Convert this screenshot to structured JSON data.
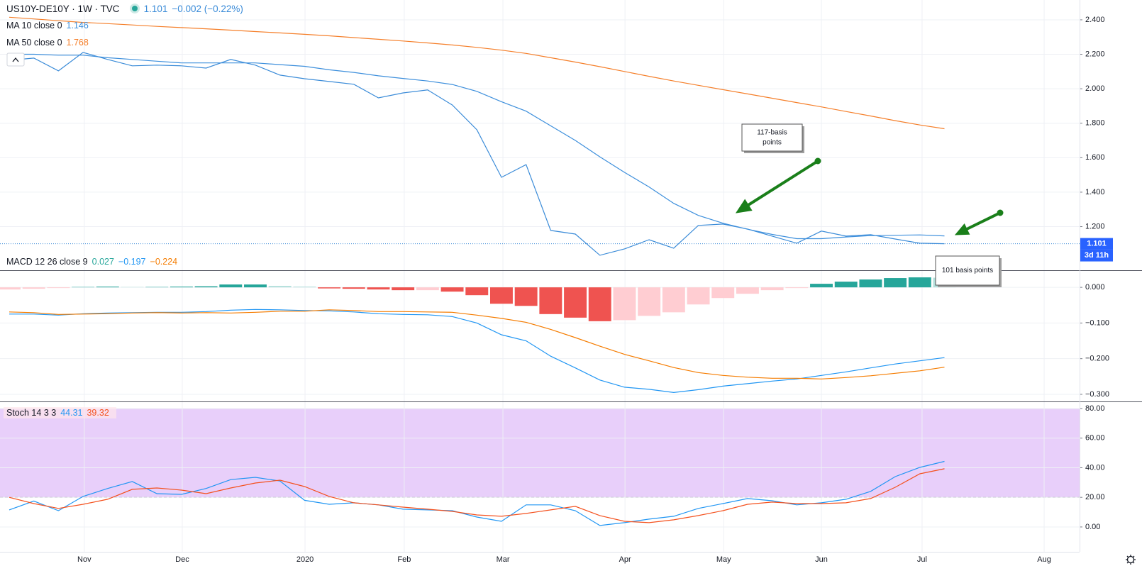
{
  "chart_data": [
    {
      "type": "line",
      "title": "US10Y-DE10Y · 1W · TVC",
      "change_label": "−0.002 (−0.22%)",
      "countdown": "3d 11h",
      "ylim": [
        0.947,
        2.515
      ],
      "yticks": [
        {
          "value": 2.4,
          "label": "2.400"
        },
        {
          "value": 2.2,
          "label": "2.200"
        },
        {
          "value": 2.0,
          "label": "2.000"
        },
        {
          "value": 1.8,
          "label": "1.800"
        },
        {
          "value": 1.6,
          "label": "1.600"
        },
        {
          "value": 1.4,
          "label": "1.400"
        },
        {
          "value": 1.2,
          "label": "1.200"
        }
      ],
      "grid": true,
      "series": [
        {
          "color": "#3a8bd8",
          "values": [
            2.165,
            2.178,
            2.104,
            2.211,
            2.17,
            2.133,
            2.137,
            2.133,
            2.12,
            2.17,
            2.137,
            2.079,
            2.058,
            2.042,
            2.026,
            1.947,
            1.976,
            1.993,
            1.906,
            1.762,
            1.486,
            1.56,
            1.178,
            1.157,
            1.034,
            1.071,
            1.124,
            1.075,
            1.207,
            1.215,
            1.186,
            1.145,
            1.104,
            1.174,
            1.145,
            1.153,
            1.128,
            1.104,
            1.101
          ]
        },
        {
          "name": "MA 10 close 0",
          "color": "#3d8fdc",
          "values": [
            2.2,
            2.2,
            2.195,
            2.195,
            2.18,
            2.17,
            2.16,
            2.15,
            2.15,
            2.15,
            2.15,
            2.14,
            2.13,
            2.11,
            2.095,
            2.075,
            2.06,
            2.045,
            2.025,
            1.985,
            1.925,
            1.87,
            1.785,
            1.7,
            1.605,
            1.515,
            1.43,
            1.335,
            1.265,
            1.22,
            1.185,
            1.155,
            1.13,
            1.13,
            1.14,
            1.148,
            1.15,
            1.152,
            1.146
          ]
        },
        {
          "name": "MA 50 close 0",
          "color": "#f57f2a",
          "values": [
            2.415,
            2.405,
            2.395,
            2.385,
            2.378,
            2.37,
            2.362,
            2.355,
            2.348,
            2.34,
            2.332,
            2.324,
            2.316,
            2.307,
            2.297,
            2.287,
            2.277,
            2.266,
            2.254,
            2.24,
            2.224,
            2.205,
            2.18,
            2.155,
            2.128,
            2.1,
            2.072,
            2.045,
            2.02,
            1.995,
            1.97,
            1.945,
            1.92,
            1.895,
            1.868,
            1.842,
            1.815,
            1.79,
            1.768
          ]
        }
      ],
      "annotations": [
        {
          "lines": [
            "117-basis",
            "points"
          ]
        },
        {
          "lines": [
            "101 basis points"
          ]
        }
      ]
    },
    {
      "type": "macd",
      "title": "MACD 12 26 close 9",
      "ylim": [
        -0.32,
        0.046
      ],
      "yticks": [
        {
          "value": 0,
          "label": "0.000"
        },
        {
          "value": -0.1,
          "label": "−0.100"
        },
        {
          "value": -0.2,
          "label": "−0.200"
        },
        {
          "value": -0.3,
          "label": "−0.300"
        }
      ],
      "grid": true,
      "histogram": {
        "values": [
          -0.006,
          -0.004,
          -0.002,
          0.001,
          0.002,
          0.001,
          0.001,
          0.002,
          0.003,
          0.008,
          0.008,
          0.004,
          0.002,
          -0.003,
          -0.004,
          -0.006,
          -0.008,
          -0.008,
          -0.012,
          -0.022,
          -0.046,
          -0.052,
          -0.075,
          -0.085,
          -0.095,
          -0.092,
          -0.08,
          -0.07,
          -0.048,
          -0.03,
          -0.018,
          -0.008,
          -0.002,
          0.01,
          0.016,
          0.022,
          0.026,
          0.028,
          0.027
        ],
        "colors": {
          "rise_above": "#26a69a",
          "fall_above": "#b2dfdb",
          "rise_below": "#ffcdd2",
          "fall_below": "#ef5350"
        }
      },
      "series": [
        {
          "color": "#2196f3",
          "last_label": "−0.197",
          "values": [
            -0.075,
            -0.075,
            -0.078,
            -0.074,
            -0.072,
            -0.071,
            -0.07,
            -0.07,
            -0.068,
            -0.064,
            -0.062,
            -0.063,
            -0.065,
            -0.066,
            -0.069,
            -0.074,
            -0.076,
            -0.077,
            -0.082,
            -0.1,
            -0.133,
            -0.15,
            -0.193,
            -0.226,
            -0.26,
            -0.28,
            -0.286,
            -0.295,
            -0.287,
            -0.277,
            -0.27,
            -0.263,
            -0.257,
            -0.247,
            -0.237,
            -0.226,
            -0.215,
            -0.206,
            -0.197
          ]
        },
        {
          "color": "#f57c00",
          "last_label": "−0.224",
          "values": [
            -0.069,
            -0.071,
            -0.076,
            -0.075,
            -0.074,
            -0.072,
            -0.071,
            -0.072,
            -0.071,
            -0.072,
            -0.07,
            -0.067,
            -0.067,
            -0.063,
            -0.065,
            -0.068,
            -0.068,
            -0.069,
            -0.07,
            -0.078,
            -0.087,
            -0.098,
            -0.118,
            -0.141,
            -0.165,
            -0.188,
            -0.206,
            -0.225,
            -0.239,
            -0.247,
            -0.252,
            -0.255,
            -0.255,
            -0.257,
            -0.253,
            -0.248,
            -0.241,
            -0.234,
            -0.224
          ]
        }
      ]
    },
    {
      "type": "stoch",
      "title": "Stoch 14 3 3",
      "ylim": [
        -16.8,
        84.3
      ],
      "yticks": [
        {
          "value": 80,
          "label": "80.00"
        },
        {
          "value": 60,
          "label": "60.00"
        },
        {
          "value": 40,
          "label": "40.00"
        },
        {
          "value": 20,
          "label": "20.00"
        },
        {
          "value": 0,
          "label": "0.00"
        }
      ],
      "grid": true,
      "band": [
        20,
        80
      ],
      "band_color": "#e8cffa",
      "series": [
        {
          "color": "#2196f3",
          "values": [
            11.5,
            17.5,
            11,
            20.6,
            26,
            30.7,
            22.5,
            22,
            26,
            32,
            33.5,
            31,
            18,
            15.3,
            16.3,
            14.9,
            12,
            11.5,
            11,
            6.7,
            3.8,
            14.9,
            14.9,
            11,
            1,
            2.9,
            5.3,
            7.2,
            12.5,
            15.8,
            19.2,
            17.7,
            14.9,
            16.3,
            18.7,
            24,
            34,
            40.2,
            44.31
          ]
        },
        {
          "color": "#f4511e",
          "values": [
            20,
            15.8,
            12.5,
            15.3,
            18.7,
            25.4,
            26.3,
            24.9,
            22.5,
            26.3,
            29.7,
            31.6,
            27.3,
            20.6,
            16.3,
            14.9,
            13.4,
            12,
            10.5,
            8.1,
            7.2,
            9.1,
            11.5,
            13.9,
            7.7,
            3.8,
            2.9,
            4.8,
            7.7,
            11,
            15.3,
            16.8,
            15.8,
            15.8,
            16.3,
            19.2,
            26.8,
            35.9,
            39.32
          ]
        }
      ],
      "x": [
        0,
        1,
        2,
        3,
        4,
        5,
        6,
        7,
        8,
        9,
        10,
        11,
        12,
        13,
        14,
        15,
        16,
        17,
        18,
        19,
        20,
        21,
        22,
        23,
        24,
        25,
        26,
        27,
        28,
        29,
        30,
        31,
        32,
        33,
        34,
        35,
        36,
        37,
        38
      ],
      "xlim": [
        -0.375,
        43.49
      ],
      "xticks": [
        {
          "value": 3.05,
          "label": "Nov"
        },
        {
          "value": 7.03,
          "label": "Dec"
        },
        {
          "value": 12.02,
          "label": "2020"
        },
        {
          "value": 16.05,
          "label": "Feb"
        },
        {
          "value": 20.06,
          "label": "Mar"
        },
        {
          "value": 25.02,
          "label": "Apr"
        },
        {
          "value": 29.03,
          "label": "May"
        },
        {
          "value": 33.0,
          "label": "Jun"
        },
        {
          "value": 37.09,
          "label": "Jul"
        },
        {
          "value": 42.05,
          "label": "Aug"
        }
      ]
    }
  ]
}
